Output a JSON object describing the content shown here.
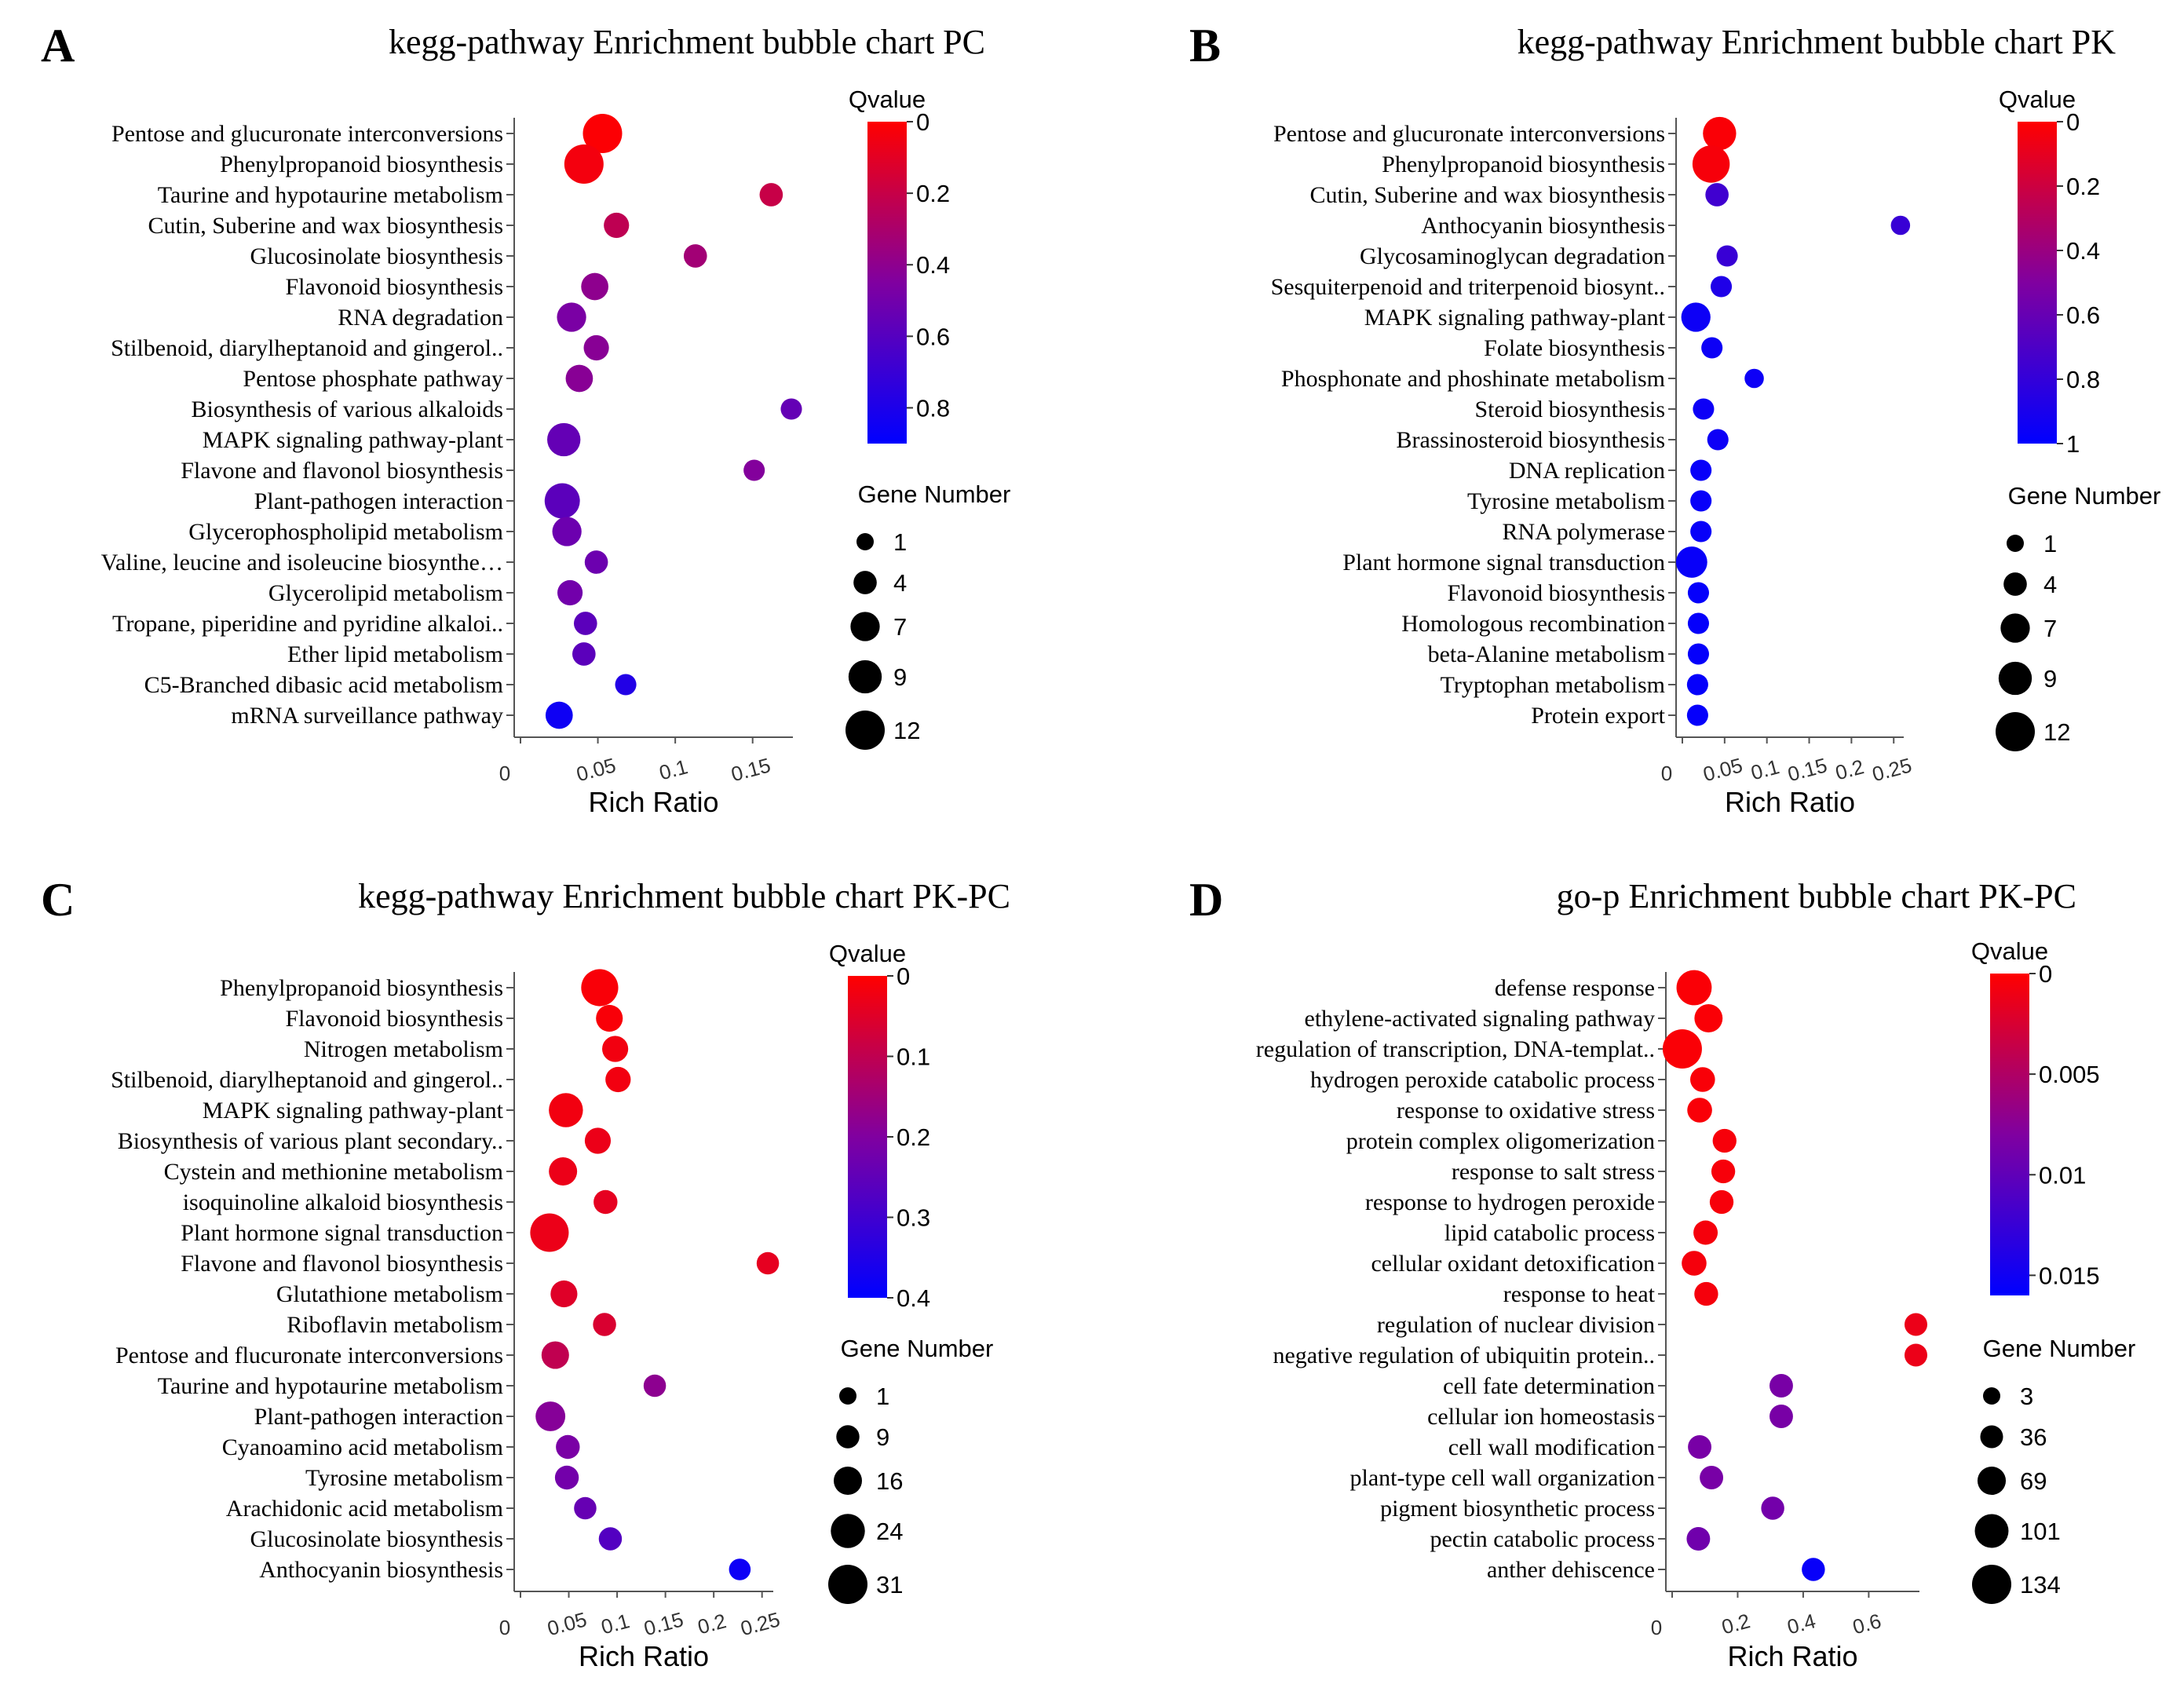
{
  "chart_data": [
    {
      "panel": "A",
      "type": "scatter",
      "title": "kegg-pathway  Enrichment bubble chart PC",
      "xlabel": "Rich Ratio",
      "xticks": [
        "0",
        "0.05",
        "0.1",
        "0.15"
      ],
      "xtick_values": [
        0,
        0.05,
        0.1,
        0.15
      ],
      "xlim": [
        0,
        0.175
      ],
      "colorbar": {
        "title": "Qvalue",
        "ticks": [
          "0",
          "0.2",
          "0.4",
          "0.6",
          "0.8"
        ],
        "tick_values": [
          0,
          0.2,
          0.4,
          0.6,
          0.8
        ],
        "range": [
          0,
          0.9
        ],
        "colors": [
          "#ff0000",
          "#8000a0",
          "#0000ff"
        ]
      },
      "size_legend": {
        "title": "Gene Number",
        "labels": [
          "1",
          "4",
          "7",
          "9",
          "12"
        ],
        "values": [
          1,
          4,
          7,
          9,
          12
        ]
      },
      "points": [
        {
          "category": "Pentose and glucuronate interconversions",
          "x": 0.053,
          "q": 0.01,
          "gene_number": 12
        },
        {
          "category": "Phenylpropanoid biosynthesis",
          "x": 0.041,
          "q": 0.04,
          "gene_number": 12
        },
        {
          "category": "Taurine and hypotaurine metabolism",
          "x": 0.162,
          "q": 0.2,
          "gene_number": 4
        },
        {
          "category": "Cutin, Suberine and wax biosynthesis",
          "x": 0.062,
          "q": 0.23,
          "gene_number": 5
        },
        {
          "category": "Glucosinolate biosynthesis",
          "x": 0.113,
          "q": 0.33,
          "gene_number": 4
        },
        {
          "category": "Flavonoid biosynthesis",
          "x": 0.048,
          "q": 0.4,
          "gene_number": 6
        },
        {
          "category": "RNA degradation",
          "x": 0.033,
          "q": 0.47,
          "gene_number": 7
        },
        {
          "category": "Stilbenoid, diarylheptanoid and gingerol..",
          "x": 0.049,
          "q": 0.42,
          "gene_number": 5
        },
        {
          "category": "Pentose phosphate pathway",
          "x": 0.038,
          "q": 0.42,
          "gene_number": 6
        },
        {
          "category": "Biosynthesis of various alkaloids",
          "x": 0.175,
          "q": 0.55,
          "gene_number": 3
        },
        {
          "category": "MAPK signaling pathway-plant",
          "x": 0.028,
          "q": 0.55,
          "gene_number": 9
        },
        {
          "category": "Flavone and flavonol biosynthesis",
          "x": 0.151,
          "q": 0.44,
          "gene_number": 3
        },
        {
          "category": "Plant-pathogen interaction",
          "x": 0.027,
          "q": 0.58,
          "gene_number": 10
        },
        {
          "category": "Glycerophospholipid metabolism",
          "x": 0.03,
          "q": 0.52,
          "gene_number": 7
        },
        {
          "category": "Valine, leucine and isoleucine biosynthe…",
          "x": 0.049,
          "q": 0.52,
          "gene_number": 4
        },
        {
          "category": "Glycerolipid metabolism",
          "x": 0.032,
          "q": 0.5,
          "gene_number": 5
        },
        {
          "category": "Tropane, piperidine and pyridine alkaloi..",
          "x": 0.042,
          "q": 0.58,
          "gene_number": 4
        },
        {
          "category": "Ether lipid metabolism",
          "x": 0.041,
          "q": 0.58,
          "gene_number": 4
        },
        {
          "category": "C5-Branched dibasic acid metabolism",
          "x": 0.068,
          "q": 0.78,
          "gene_number": 3
        },
        {
          "category": "mRNA surveillance pathway",
          "x": 0.025,
          "q": 0.85,
          "gene_number": 6
        }
      ]
    },
    {
      "panel": "B",
      "type": "scatter",
      "title": "kegg-pathway  Enrichment bubble chart PK",
      "xlabel": "Rich Ratio",
      "xticks": [
        "0",
        "0.05",
        "0.1",
        "0.15",
        "0.2",
        "0.25"
      ],
      "xtick_values": [
        0,
        0.05,
        0.1,
        0.15,
        0.2,
        0.25
      ],
      "xlim": [
        0,
        0.26
      ],
      "colorbar": {
        "title": "Qvalue",
        "ticks": [
          "0",
          "0.2",
          "0.4",
          "0.6",
          "0.8",
          "1"
        ],
        "tick_values": [
          0,
          0.2,
          0.4,
          0.6,
          0.8,
          1
        ],
        "range": [
          0,
          1
        ],
        "colors": [
          "#ff0000",
          "#8000a0",
          "#0000ff"
        ]
      },
      "size_legend": {
        "title": "Gene Number",
        "labels": [
          "1",
          "4",
          "7",
          "9",
          "12"
        ],
        "values": [
          1,
          4,
          7,
          9,
          12
        ]
      },
      "points": [
        {
          "category": "Pentose and glucuronate interconversions",
          "x": 0.044,
          "q": 0.02,
          "gene_number": 9
        },
        {
          "category": "Phenylpropanoid biosynthesis",
          "x": 0.034,
          "q": 0.03,
          "gene_number": 11
        },
        {
          "category": "Cutin, Suberine and wax biosynthesis",
          "x": 0.041,
          "q": 0.75,
          "gene_number": 4
        },
        {
          "category": "Anthocyanin biosynthesis",
          "x": 0.258,
          "q": 0.78,
          "gene_number": 2
        },
        {
          "category": "Glycosaminoglycan degradation",
          "x": 0.053,
          "q": 0.78,
          "gene_number": 3
        },
        {
          "category": "Sesquiterpenoid and triterpenoid biosynt..",
          "x": 0.046,
          "q": 0.88,
          "gene_number": 3
        },
        {
          "category": "MAPK signaling pathway-plant",
          "x": 0.016,
          "q": 0.95,
          "gene_number": 7
        },
        {
          "category": "Folate biosynthesis",
          "x": 0.035,
          "q": 0.95,
          "gene_number": 3
        },
        {
          "category": "Phosphonate and phoshinate metabolism",
          "x": 0.085,
          "q": 0.95,
          "gene_number": 2
        },
        {
          "category": "Steroid biosynthesis",
          "x": 0.025,
          "q": 0.95,
          "gene_number": 3
        },
        {
          "category": "Brassinosteroid biosynthesis",
          "x": 0.042,
          "q": 0.95,
          "gene_number": 3
        },
        {
          "category": "DNA replication",
          "x": 0.022,
          "q": 0.97,
          "gene_number": 3
        },
        {
          "category": "Tyrosine metabolism",
          "x": 0.022,
          "q": 0.97,
          "gene_number": 3
        },
        {
          "category": "RNA polymerase",
          "x": 0.022,
          "q": 0.97,
          "gene_number": 3
        },
        {
          "category": "Plant hormone signal transduction",
          "x": 0.011,
          "q": 0.97,
          "gene_number": 8
        },
        {
          "category": "Flavonoid biosynthesis",
          "x": 0.019,
          "q": 0.98,
          "gene_number": 3
        },
        {
          "category": "Homologous recombination",
          "x": 0.019,
          "q": 0.98,
          "gene_number": 3
        },
        {
          "category": "beta-Alanine metabolism",
          "x": 0.019,
          "q": 0.98,
          "gene_number": 3
        },
        {
          "category": "Tryptophan metabolism",
          "x": 0.018,
          "q": 0.98,
          "gene_number": 3
        },
        {
          "category": "Protein export",
          "x": 0.018,
          "q": 0.98,
          "gene_number": 3
        }
      ]
    },
    {
      "panel": "C",
      "type": "scatter",
      "title": "kegg-pathway  Enrichment bubble chart PK-PC",
      "xlabel": "Rich Ratio",
      "xticks": [
        "0",
        "0.05",
        "0.1",
        "0.15",
        "0.2",
        "0.25"
      ],
      "xtick_values": [
        0,
        0.05,
        0.1,
        0.15,
        0.2,
        0.25
      ],
      "xlim": [
        0,
        0.26
      ],
      "colorbar": {
        "title": "Qvalue",
        "ticks": [
          "0",
          "0.1",
          "0.2",
          "0.3",
          "0.4"
        ],
        "tick_values": [
          0,
          0.1,
          0.2,
          0.3,
          0.4
        ],
        "range": [
          0,
          0.4
        ],
        "colors": [
          "#ff0000",
          "#8000a0",
          "#0000ff"
        ]
      },
      "size_legend": {
        "title": "Gene Number",
        "labels": [
          "1",
          "9",
          "16",
          "24",
          "31"
        ],
        "values": [
          1,
          9,
          16,
          24,
          31
        ]
      },
      "points": [
        {
          "category": "Phenylpropanoid biosynthesis",
          "x": 0.082,
          "q": 0.01,
          "gene_number": 28
        },
        {
          "category": "Flavonoid biosynthesis",
          "x": 0.092,
          "q": 0.01,
          "gene_number": 14
        },
        {
          "category": "Nitrogen metabolism",
          "x": 0.098,
          "q": 0.02,
          "gene_number": 13
        },
        {
          "category": "Stilbenoid, diarylheptanoid and gingerol..",
          "x": 0.101,
          "q": 0.02,
          "gene_number": 12
        },
        {
          "category": "MAPK signaling pathway-plant",
          "x": 0.047,
          "q": 0.02,
          "gene_number": 24
        },
        {
          "category": "Biosynthesis of various plant secondary..",
          "x": 0.08,
          "q": 0.03,
          "gene_number": 13
        },
        {
          "category": "Cystein and methionine metabolism",
          "x": 0.044,
          "q": 0.03,
          "gene_number": 16
        },
        {
          "category": "isoquinoline alkaloid biosynthesis",
          "x": 0.088,
          "q": 0.04,
          "gene_number": 10
        },
        {
          "category": "Plant hormone signal transduction",
          "x": 0.03,
          "q": 0.03,
          "gene_number": 30
        },
        {
          "category": "Flavone and flavonol biosynthesis",
          "x": 0.256,
          "q": 0.04,
          "gene_number": 8
        },
        {
          "category": "Glutathione metabolism",
          "x": 0.045,
          "q": 0.05,
          "gene_number": 14
        },
        {
          "category": "Riboflavin metabolism",
          "x": 0.087,
          "q": 0.06,
          "gene_number": 9
        },
        {
          "category": "Pentose and flucuronate interconversions",
          "x": 0.036,
          "q": 0.1,
          "gene_number": 15
        },
        {
          "category": "Taurine and hypotaurine metabolism",
          "x": 0.139,
          "q": 0.18,
          "gene_number": 8
        },
        {
          "category": "Plant-pathogen interaction",
          "x": 0.031,
          "q": 0.19,
          "gene_number": 18
        },
        {
          "category": "Cyanoamino acid metabolism",
          "x": 0.049,
          "q": 0.21,
          "gene_number": 10
        },
        {
          "category": "Tyrosine metabolism",
          "x": 0.048,
          "q": 0.22,
          "gene_number": 10
        },
        {
          "category": "Arachidonic acid metabolism",
          "x": 0.067,
          "q": 0.24,
          "gene_number": 8
        },
        {
          "category": "Glucosinolate biosynthesis",
          "x": 0.093,
          "q": 0.27,
          "gene_number": 9
        },
        {
          "category": "Anthocyanin biosynthesis",
          "x": 0.227,
          "q": 0.38,
          "gene_number": 7
        }
      ]
    },
    {
      "panel": "D",
      "type": "scatter",
      "title": "go-p Enrichment bubble chart PK-PC",
      "xlabel": "Rich Ratio",
      "xticks": [
        "0",
        "0.2",
        "0.4",
        "0.6"
      ],
      "xtick_values": [
        0,
        0.2,
        0.4,
        0.6
      ],
      "xlim": [
        0,
        0.75
      ],
      "colorbar": {
        "title": "Qvalue",
        "ticks": [
          "0",
          "0.005",
          "0.01",
          "0.015"
        ],
        "tick_values": [
          0,
          0.005,
          0.01,
          0.015
        ],
        "range": [
          0,
          0.016
        ],
        "colors": [
          "#ff0000",
          "#8000a0",
          "#0000ff"
        ]
      },
      "size_legend": {
        "title": "Gene Number",
        "labels": [
          "3",
          "36",
          "69",
          "101",
          "134"
        ],
        "values": [
          3,
          36,
          69,
          101,
          134
        ]
      },
      "points": [
        {
          "category": "defense response",
          "x": 0.067,
          "q": 0.0003,
          "gene_number": 110
        },
        {
          "category": "ethylene-activated signaling pathway",
          "x": 0.111,
          "q": 0.0003,
          "gene_number": 68
        },
        {
          "category": "regulation of transcription, DNA-templat..",
          "x": 0.031,
          "q": 0.0003,
          "gene_number": 134
        },
        {
          "category": "hydrogen peroxide catabolic process",
          "x": 0.093,
          "q": 0.0004,
          "gene_number": 48
        },
        {
          "category": "response to oxidative stress",
          "x": 0.084,
          "q": 0.0004,
          "gene_number": 48
        },
        {
          "category": "protein complex oligomerization",
          "x": 0.16,
          "q": 0.0005,
          "gene_number": 42
        },
        {
          "category": "response to salt stress",
          "x": 0.156,
          "q": 0.0005,
          "gene_number": 42
        },
        {
          "category": "response to hydrogen peroxide",
          "x": 0.151,
          "q": 0.0005,
          "gene_number": 42
        },
        {
          "category": "lipid catabolic process",
          "x": 0.102,
          "q": 0.0006,
          "gene_number": 45
        },
        {
          "category": "cellular oxidant detoxification",
          "x": 0.067,
          "q": 0.0006,
          "gene_number": 48
        },
        {
          "category": "response to heat",
          "x": 0.104,
          "q": 0.0006,
          "gene_number": 42
        },
        {
          "category": "regulation of nuclear division",
          "x": 0.744,
          "q": 0.0012,
          "gene_number": 36
        },
        {
          "category": "negative regulation of ubiquitin protein..",
          "x": 0.744,
          "q": 0.0012,
          "gene_number": 36
        },
        {
          "category": "cell fate determination",
          "x": 0.333,
          "q": 0.0085,
          "gene_number": 40
        },
        {
          "category": "cellular ion homeostasis",
          "x": 0.333,
          "q": 0.0085,
          "gene_number": 40
        },
        {
          "category": "cell wall modification",
          "x": 0.084,
          "q": 0.0085,
          "gene_number": 40
        },
        {
          "category": "plant-type cell wall organization",
          "x": 0.12,
          "q": 0.0085,
          "gene_number": 40
        },
        {
          "category": "pigment biosynthetic process",
          "x": 0.307,
          "q": 0.0088,
          "gene_number": 38
        },
        {
          "category": "pectin catabolic process",
          "x": 0.08,
          "q": 0.009,
          "gene_number": 40
        },
        {
          "category": "anther dehiscence",
          "x": 0.431,
          "q": 0.0155,
          "gene_number": 38
        }
      ]
    }
  ]
}
